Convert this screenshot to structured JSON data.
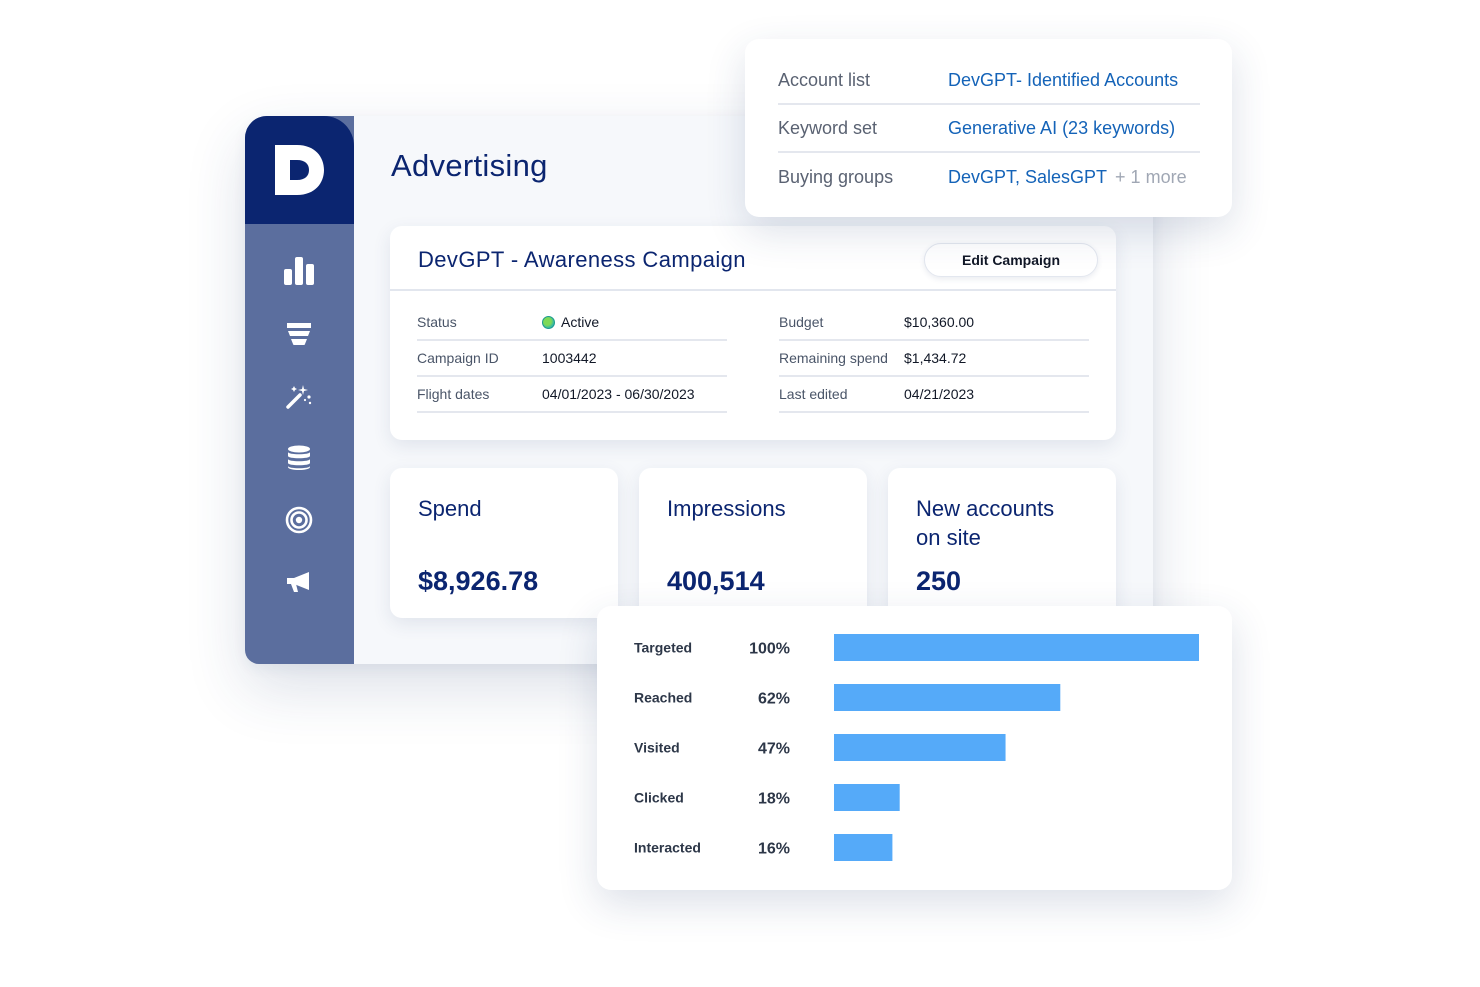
{
  "page": {
    "title": "Advertising"
  },
  "logo": {
    "letter": "D"
  },
  "sidebar": {
    "items": [
      {
        "icon": "bar-chart-icon"
      },
      {
        "icon": "funnel-icon"
      },
      {
        "icon": "magic-wand-icon"
      },
      {
        "icon": "database-icon"
      },
      {
        "icon": "target-icon"
      },
      {
        "icon": "megaphone-icon"
      }
    ]
  },
  "campaign": {
    "title": "DevGPT - Awareness Campaign",
    "edit_label": "Edit Campaign",
    "left": [
      {
        "label": "Status",
        "value": "Active",
        "status_color": "#3cc46a"
      },
      {
        "label": "Campaign ID",
        "value": "1003442"
      },
      {
        "label": "Flight dates",
        "value": "04/01/2023 - 06/30/2023"
      }
    ],
    "right": [
      {
        "label": "Budget",
        "value": "$10,360.00"
      },
      {
        "label": "Remaining spend",
        "value": "$1,434.72"
      },
      {
        "label": "Last edited",
        "value": "04/21/2023"
      }
    ]
  },
  "metrics": [
    {
      "label": "Spend",
      "value": "$8,926.78"
    },
    {
      "label": "Impressions",
      "value": "400,514"
    },
    {
      "label_line1": "New accounts",
      "label_line2": "on site",
      "value": "250"
    }
  ],
  "account_popup": {
    "rows": [
      {
        "label": "Account list",
        "value": "DevGPT- Identified Accounts"
      },
      {
        "label": "Keyword set",
        "value": "Generative AI (23 keywords)"
      },
      {
        "label": "Buying groups",
        "value": "DevGPT, SalesGPT",
        "extra": "+ 1 more"
      }
    ]
  },
  "colors": {
    "brand_dark": "#0b2570",
    "sidebar": "#5b6e9e",
    "link": "#1463b8",
    "bar": "#55aaf9"
  },
  "chart_data": {
    "type": "bar",
    "orientation": "horizontal",
    "categories": [
      "Targeted",
      "Reached",
      "Visited",
      "Clicked",
      "Interacted"
    ],
    "values": [
      100,
      62,
      47,
      18,
      16
    ],
    "value_labels": [
      "100%",
      "62%",
      "47%",
      "18%",
      "16%"
    ],
    "xlim": [
      0,
      100
    ],
    "grid": false,
    "color": "#55aaf9"
  }
}
